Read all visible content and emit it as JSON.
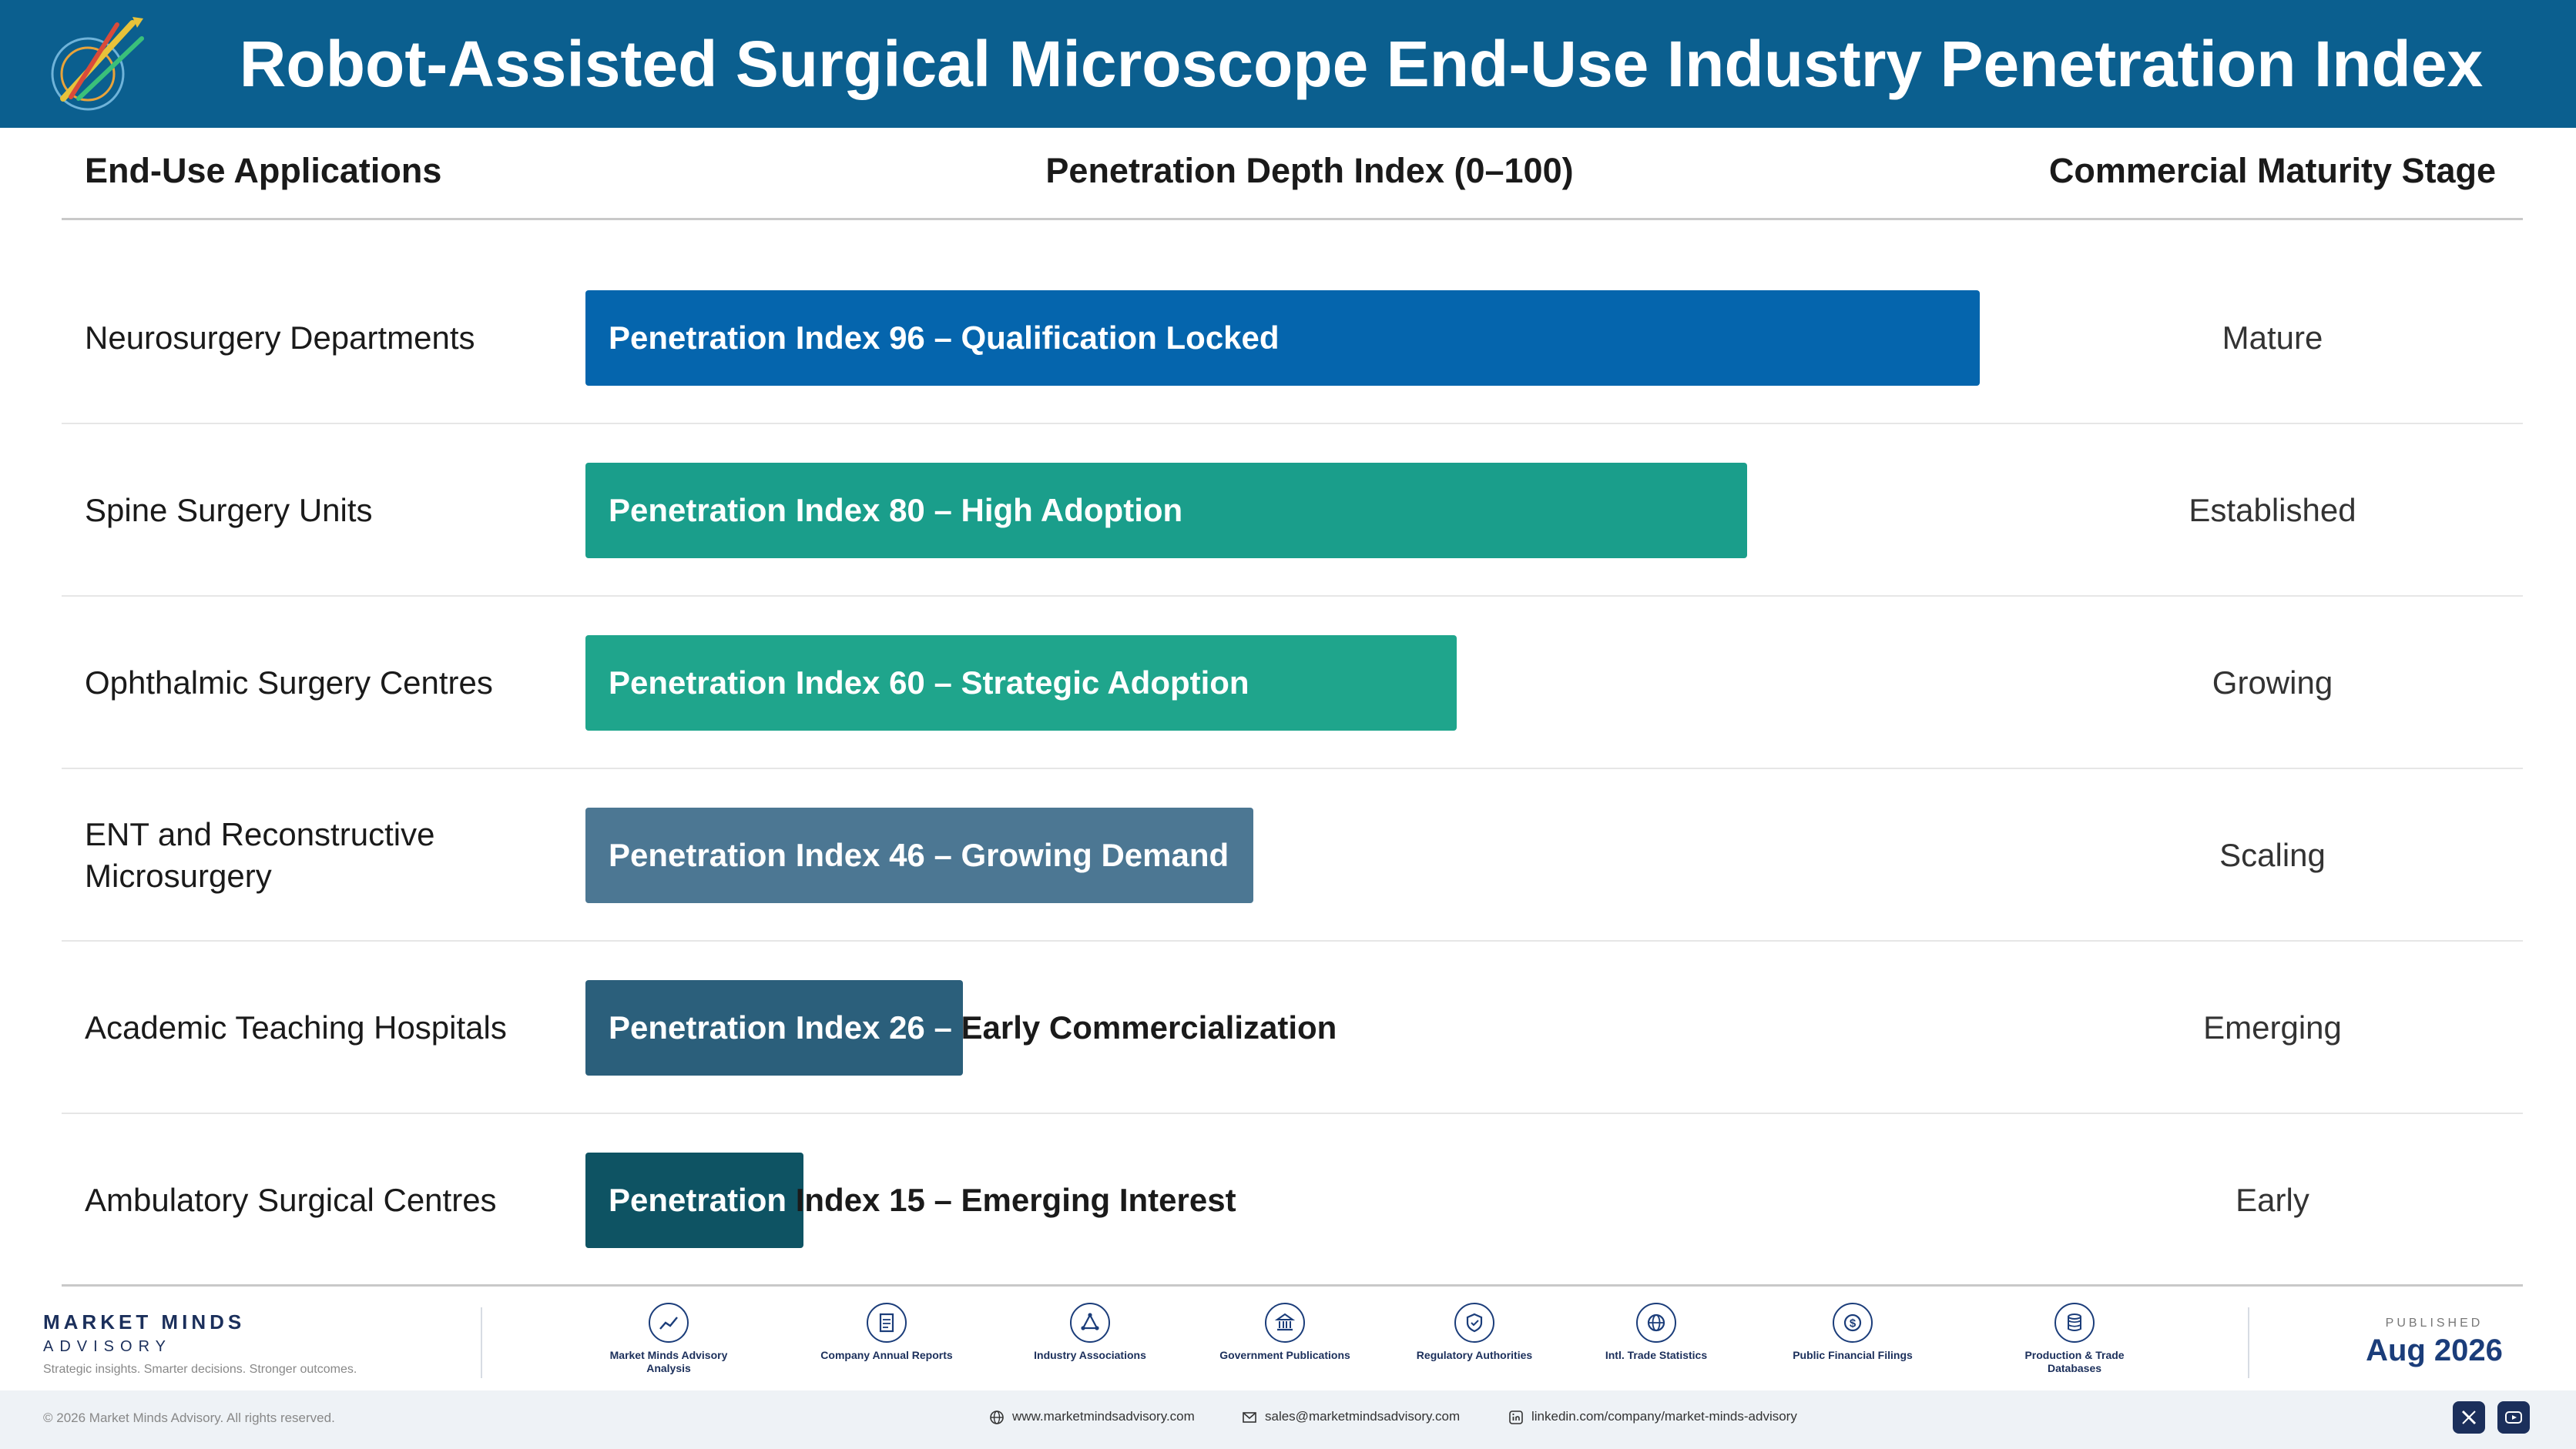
{
  "header": {
    "title": "Robot-Assisted Surgical Microscope End-Use Industry Penetration Index"
  },
  "columns": {
    "app": "End-Use Applications",
    "penetration": "Penetration Depth Index (0–100)",
    "stage": "Commercial Maturity Stage"
  },
  "chart_data": {
    "type": "bar",
    "orientation": "horizontal",
    "title": "Robot-Assisted Surgical Microscope End-Use Industry Penetration Index",
    "xlabel": "Penetration Depth Index (0–100)",
    "xlim": [
      0,
      100
    ],
    "grid": false,
    "categories": [
      "Neurosurgery Departments",
      "Spine Surgery Units",
      "Ophthalmic Surgery Centres",
      "ENT and Reconstructive Microsurgery",
      "Academic Teaching Hospitals",
      "Ambulatory Surgical Centres"
    ],
    "values": [
      96,
      80,
      60,
      46,
      26,
      15
    ],
    "bar_labels": [
      "Penetration Index 96 – Qualification Locked",
      "Penetration Index 80 – High Adoption",
      "Penetration Index 60 – Strategic Adoption",
      "Penetration Index 46 – Growing Demand",
      "Penetration Index 26 – Early Commercialization",
      "Penetration Index 15 – Emerging Interest"
    ],
    "stages": [
      "Mature",
      "Established",
      "Growing",
      "Scaling",
      "Emerging",
      "Early"
    ],
    "colors": [
      "#0565ad",
      "#1a9e8b",
      "#1fa58c",
      "#4c7793",
      "#2b5f7b",
      "#0e5363"
    ]
  },
  "footer": {
    "brand_name": "MARKET MINDS",
    "brand_sub": "ADVISORY",
    "brand_tag": "Strategic insights. Smarter decisions. Stronger outcomes.",
    "sources": [
      {
        "label": "Market Minds Advisory Analysis",
        "icon": "trend-chart-icon"
      },
      {
        "label": "Company Annual Reports",
        "icon": "document-icon"
      },
      {
        "label": "Industry Associations",
        "icon": "network-icon"
      },
      {
        "label": "Government Publications",
        "icon": "government-building-icon"
      },
      {
        "label": "Regulatory Authorities",
        "icon": "shield-check-icon"
      },
      {
        "label": "Intl. Trade Statistics",
        "icon": "globe-icon"
      },
      {
        "label": "Public Financial Filings",
        "icon": "dollar-coin-icon"
      },
      {
        "label": "Production & Trade Databases",
        "icon": "database-icon"
      }
    ],
    "published_label": "PUBLISHED",
    "published_date": "Aug 2026",
    "copyright": "© 2026 Market Minds Advisory. All rights reserved.",
    "website": "www.marketmindsadvisory.com",
    "email": "sales@marketmindsadvisory.com",
    "linkedin": "linkedin.com/company/market-minds-advisory"
  }
}
